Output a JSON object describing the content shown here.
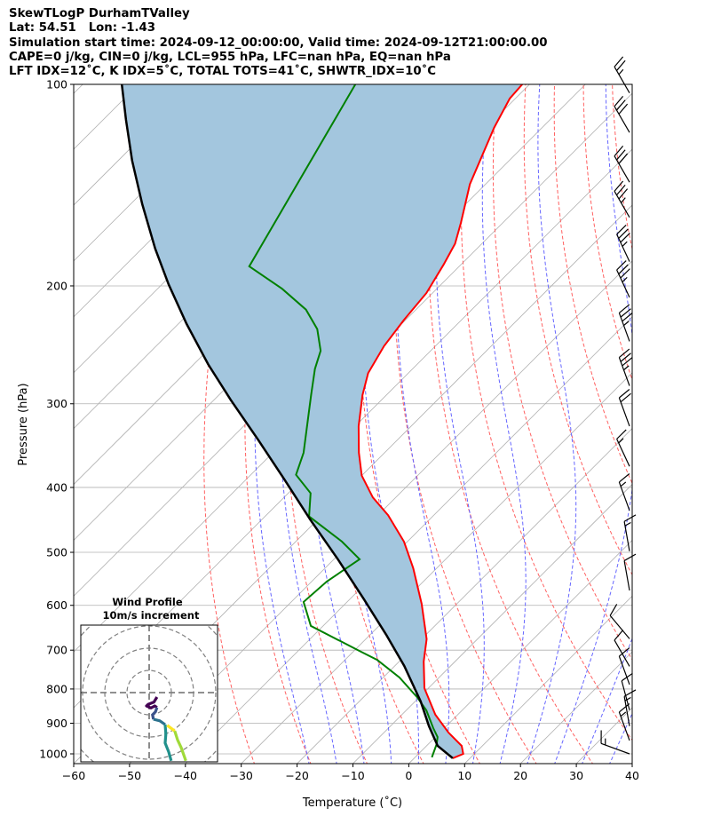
{
  "header": {
    "line1": "SkewTLogP DurhamTValley",
    "line2": "Lat: 54.51   Lon: -1.43",
    "line3": "Simulation start time: 2024-09-12_00:00:00, Valid time: 2024-09-12T21:00:00.00",
    "line4": "CAPE=0 j/kg, CIN=0 j/kg, LCL=955 hPa, LFC=nan hPa, EQ=nan hPa",
    "line5": "LFT IDX=12˚C, K IDX=5˚C, TOTAL TOTS=41˚C, SHWTR_IDX=10˚C"
  },
  "chart_data": {
    "type": "line",
    "subtype": "skew-t log-p",
    "xlabel": "Temperature (˚C)",
    "ylabel": "Pressure (hPa)",
    "xlim": [
      -60,
      40
    ],
    "ylim": [
      1034,
      100
    ],
    "xticks": [
      -60,
      -50,
      -40,
      -30,
      -20,
      -10,
      0,
      10,
      20,
      30,
      40
    ],
    "xtick_labels": [
      "−60",
      "−50",
      "−40",
      "−30",
      "−20",
      "−10",
      "0",
      "10",
      "20",
      "30",
      "40"
    ],
    "yticks": [
      100,
      200,
      300,
      400,
      500,
      600,
      700,
      800,
      900,
      1000
    ],
    "ytick_labels": [
      "100",
      "200",
      "300",
      "400",
      "500",
      "600",
      "700",
      "800",
      "900",
      "1000"
    ],
    "grid": true,
    "colors": {
      "temperature": "#ff0000",
      "dewpoint": "#008000",
      "parcel": "#000000",
      "shade": "#a3c6de",
      "isotherm": "#b0b0b0",
      "dry_adiabat": "#ff6060",
      "moist_adiabat": "#6666ff"
    },
    "temperature": {
      "p": [
        1015,
        1000,
        973,
        929,
        874,
        798,
        728,
        674,
        597,
        528,
        482,
        440,
        414,
        384,
        355,
        324,
        291,
        270,
        246,
        225,
        205,
        186,
        173,
        161,
        141,
        116,
        105,
        100
      ],
      "T": [
        6.9,
        8.0,
        6.3,
        1.5,
        -4.0,
        -10.7,
        -15.6,
        -19.1,
        -26.3,
        -34.2,
        -40.6,
        -48.2,
        -54.1,
        -60.0,
        -64.6,
        -69.4,
        -74.3,
        -77.2,
        -79.2,
        -80.3,
        -81.1,
        -83.1,
        -84.8,
        -87.5,
        -92.8,
        -98.6,
        -101.0,
        -101.3
      ]
    },
    "dewpoint": {
      "p": [
        1012,
        967,
        944,
        915,
        861,
        823,
        769,
        724,
        702,
        644,
        593,
        553,
        512,
        482,
        442,
        408,
        383,
        355,
        291,
        266,
        250,
        232,
        217,
        202,
        187,
        100
      ],
      "T": [
        3.0,
        1.5,
        0.4,
        -2.0,
        -6.4,
        -10.4,
        -17.1,
        -24.2,
        -29.0,
        -42.2,
        -47.8,
        -47.3,
        -45.4,
        -51.7,
        -62.1,
        -66.0,
        -71.9,
        -74.5,
        -83.5,
        -87.5,
        -89.7,
        -94.2,
        -99.7,
        -107.7,
        -117.6,
        -131.2
      ]
    },
    "parcel": {
      "p": [
        1015,
        973,
        909,
        835,
        739,
        664,
        588,
        512,
        447,
        389,
        339,
        296,
        262,
        228,
        199,
        176,
        151,
        130,
        113,
        100
      ],
      "T": [
        6.9,
        2.0,
        -3.1,
        -9.0,
        -18.3,
        -27.1,
        -37.4,
        -49.3,
        -61.3,
        -73.2,
        -85.1,
        -97.0,
        -107.4,
        -118.5,
        -128.8,
        -137.6,
        -147.9,
        -157.5,
        -165.9,
        -173.0
      ]
    },
    "wind_barbs": [
      {
        "p": 103,
        "dir": 330,
        "speed": 25
      },
      {
        "p": 118,
        "dir": 330,
        "speed": 30
      },
      {
        "p": 140,
        "dir": 330,
        "speed": 30
      },
      {
        "p": 158,
        "dir": 330,
        "speed": 35
      },
      {
        "p": 184,
        "dir": 335,
        "speed": 35
      },
      {
        "p": 208,
        "dir": 335,
        "speed": 35
      },
      {
        "p": 242,
        "dir": 340,
        "speed": 35
      },
      {
        "p": 282,
        "dir": 340,
        "speed": 35
      },
      {
        "p": 324,
        "dir": 340,
        "speed": 20
      },
      {
        "p": 372,
        "dir": 335,
        "speed": 15
      },
      {
        "p": 433,
        "dir": 340,
        "speed": 15
      },
      {
        "p": 498,
        "dir": 350,
        "speed": 15
      },
      {
        "p": 570,
        "dir": 350,
        "speed": 10
      },
      {
        "p": 673,
        "dir": 320,
        "speed": 10
      },
      {
        "p": 740,
        "dir": 330,
        "speed": 10
      },
      {
        "p": 788,
        "dir": 340,
        "speed": 10
      },
      {
        "p": 860,
        "dir": 345,
        "speed": 10
      },
      {
        "p": 909,
        "dir": 350,
        "speed": 15
      },
      {
        "p": 955,
        "dir": 340,
        "speed": 15
      },
      {
        "p": 1000,
        "dir": 290,
        "speed": 15
      }
    ],
    "hodograph": {
      "title": "Wind Profile",
      "subtitle": "10m/s increment",
      "ring_step_ms": 10,
      "segments": [
        {
          "color": "#440154",
          "u": [
            3.5,
            2.1,
            -0.5,
            -1.2,
            0.8,
            2.5,
            3.5
          ],
          "v": [
            -2.0,
            -4.3,
            -5.3,
            -6.0,
            -6.9,
            -6.0,
            -6.7
          ]
        },
        {
          "color": "#3b528b",
          "u": [
            3.5,
            2.8,
            1.5,
            1.9
          ],
          "v": [
            -6.7,
            -8.7,
            -10.0,
            -12.0
          ]
        },
        {
          "color": "#2c728e",
          "u": [
            1.9,
            4.8,
            7.2
          ],
          "v": [
            -12.0,
            -12.7,
            -14.4
          ]
        },
        {
          "color": "#21918c",
          "u": [
            7.2,
            7.5,
            7.2,
            8.8,
            9.9
          ],
          "v": [
            -14.4,
            -18.7,
            -22.7,
            -26.7,
            -30.7
          ]
        },
        {
          "color": "#fde725",
          "u": [
            8.1,
            11.5
          ],
          "v": [
            -14.7,
            -17.3
          ]
        },
        {
          "color": "#a0da39",
          "u": [
            11.5,
            12.8,
            14.4,
            16.5
          ],
          "v": [
            -17.3,
            -21.3,
            -24.7,
            -30.7
          ]
        }
      ]
    }
  }
}
